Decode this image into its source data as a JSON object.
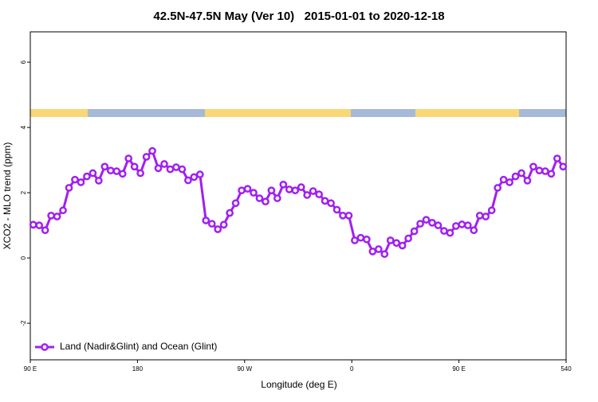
{
  "chart_data": {
    "type": "line",
    "title": "42.5N-47.5N May (Ver 10)   2015-01-01 to 2020-12-18",
    "x_label": "Longitude (deg E)",
    "y_label": "XCO2 - MLO trend (ppm)",
    "x": [
      92.5,
      97.5,
      102.5,
      107.5,
      112.5,
      117.5,
      122.5,
      127.5,
      132.5,
      137.5,
      142.5,
      147.5,
      152.5,
      157.5,
      162.5,
      167.5,
      172.5,
      177.5,
      182.5,
      187.5,
      192.5,
      197.5,
      202.5,
      207.5,
      212.5,
      217.5,
      222.5,
      227.5,
      232.5,
      237.5,
      242.5,
      247.5,
      252.5,
      257.5,
      262.5,
      267.5,
      272.5,
      277.5,
      282.5,
      287.5,
      292.5,
      297.5,
      302.5,
      307.5,
      312.5,
      317.5,
      322.5,
      327.5,
      332.5,
      337.5,
      342.5,
      347.5,
      352.5,
      357.5,
      362.5,
      367.5,
      372.5,
      377.5,
      382.5,
      387.5,
      392.5,
      397.5,
      402.5,
      407.5,
      412.5,
      417.5,
      422.5,
      427.5,
      432.5,
      437.5,
      442.5,
      447.5,
      452.5,
      457.5,
      462.5,
      467.5,
      472.5,
      477.5,
      482.5,
      487.5,
      492.5,
      497.5,
      502.5,
      507.5,
      512.5,
      517.5,
      522.5,
      527.5,
      532.5,
      537.5
    ],
    "series": [
      {
        "name": "Land (Nadir&Glint) and Ocean (Glint)",
        "color": "#a020f0",
        "values": [
          1.02,
          1.0,
          0.85,
          1.3,
          1.27,
          1.46,
          2.15,
          2.4,
          2.32,
          2.5,
          2.6,
          2.37,
          2.8,
          2.68,
          2.66,
          2.58,
          3.05,
          2.8,
          2.6,
          3.1,
          3.28,
          2.75,
          2.88,
          2.72,
          2.78,
          2.72,
          2.38,
          2.48,
          2.56,
          1.15,
          1.05,
          0.88,
          1.02,
          1.38,
          1.68,
          2.07,
          2.12,
          2.0,
          1.83,
          1.73,
          2.07,
          1.83,
          2.25,
          2.1,
          2.07,
          2.17,
          1.93,
          2.05,
          1.95,
          1.75,
          1.68,
          1.48,
          1.3,
          1.3,
          0.54,
          0.62,
          0.57,
          0.2,
          0.27,
          0.12,
          0.54,
          0.46,
          0.38,
          0.6,
          0.82,
          1.05,
          1.17,
          1.08,
          1.0,
          0.83,
          0.77,
          0.98,
          1.03,
          1.0,
          0.85,
          1.3,
          1.27,
          1.46,
          2.15,
          2.4,
          2.32,
          2.5,
          2.6,
          2.37,
          2.8,
          2.68,
          2.66,
          2.58,
          3.05,
          2.8
        ]
      }
    ],
    "xlim": [
      90,
      540
    ],
    "ylim": [
      -3.12,
      6.93
    ],
    "xticks": [
      {
        "value": 90,
        "label": "90 E"
      },
      180,
      {
        "value": 270,
        "label": "90 W"
      },
      {
        "value": 360,
        "label": "0"
      },
      {
        "value": 450,
        "label": "90 E"
      },
      540
    ],
    "yticks": [
      -2,
      0,
      2,
      4,
      6
    ],
    "legend": "bottom-left"
  }
}
